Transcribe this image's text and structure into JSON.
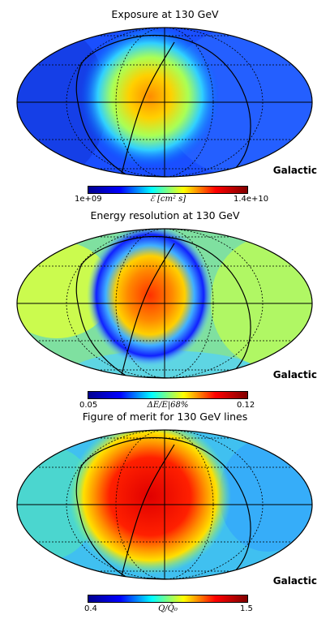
{
  "colormap": [
    "#00008f",
    "#0000ff",
    "#00ffff",
    "#ffff00",
    "#ff0000",
    "#800000"
  ],
  "panels": [
    {
      "title": "Exposure at 130 GeV",
      "frame_label": "Galactic",
      "colorbar": {
        "min": "1e+09",
        "max": "1.4e+10",
        "label": "ℰ [cm² s]"
      }
    },
    {
      "title": "Energy resolution at 130 GeV",
      "frame_label": "Galactic",
      "colorbar": {
        "min": "0.05",
        "max": "0.12",
        "label": "ΔE/E|68%"
      }
    },
    {
      "title": "Figure of merit for 130 GeV lines",
      "frame_label": "Galactic",
      "colorbar": {
        "min": "0.4",
        "max": "1.5",
        "label": "Q/Q̄₀"
      }
    }
  ]
}
